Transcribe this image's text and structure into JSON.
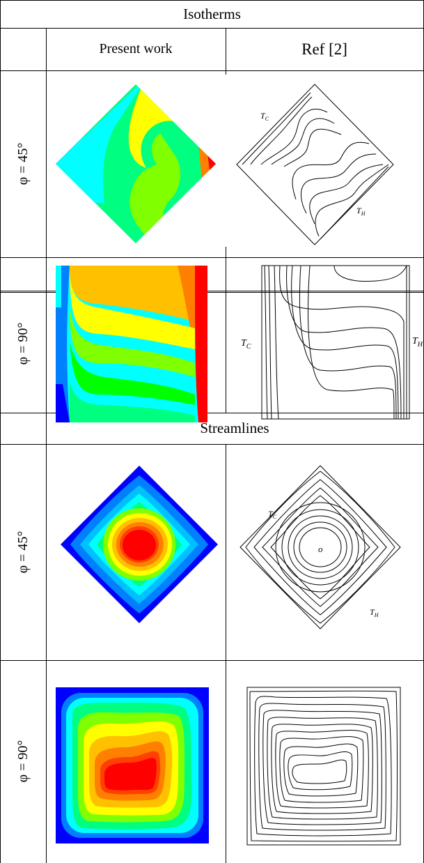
{
  "table": {
    "isotherms_title": "Isotherms",
    "streamlines_title": "Streamlines",
    "col_present": "Present work",
    "col_ref": "Ref [2]",
    "rows": [
      {
        "label": "φ = 45°"
      },
      {
        "label": "φ = 90°"
      },
      {
        "label": "φ = 45°"
      },
      {
        "label": "φ = 90°"
      }
    ]
  },
  "ref_labels": {
    "cold": "T",
    "cold_sub": "C",
    "hot": "T",
    "hot_sub": "H",
    "center_mark": "o"
  },
  "colors": {
    "contour_scale": [
      "#0000ff",
      "#0080ff",
      "#00ffff",
      "#00ff80",
      "#00ff00",
      "#80ff00",
      "#ffff00",
      "#ffc000",
      "#ff8000",
      "#ff0000"
    ],
    "line": "#000000"
  }
}
